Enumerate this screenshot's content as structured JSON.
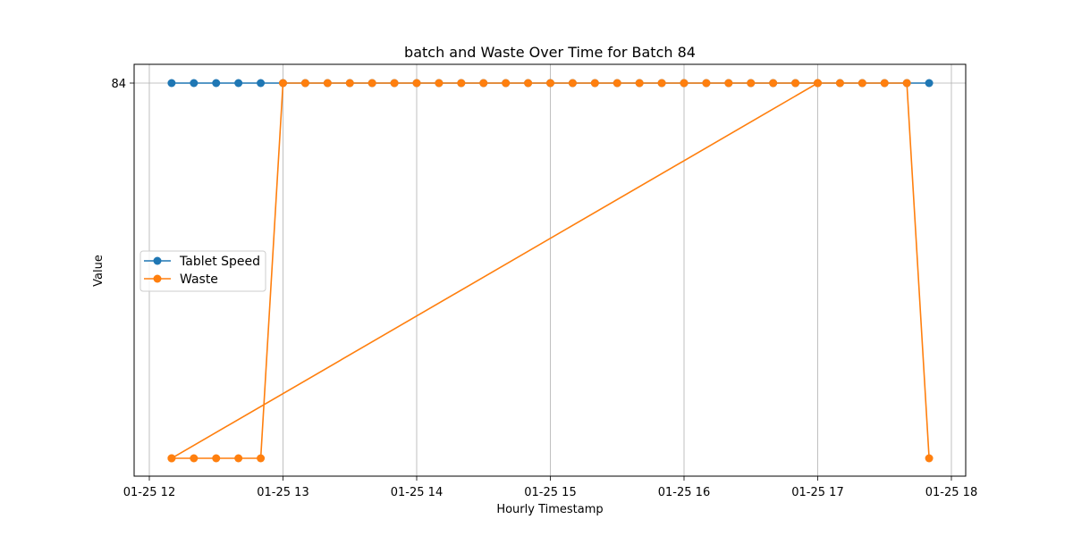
{
  "chart_data": {
    "type": "line",
    "title": "batch and Waste Over Time for Batch 84",
    "xlabel": "Hourly Timestamp",
    "ylabel": "Value",
    "x_ticks": [
      "01-25 12",
      "01-25 13",
      "01-25 14",
      "01-25 15",
      "01-25 16",
      "01-25 17",
      "01-25 18"
    ],
    "y_ticks": [
      "84"
    ],
    "xlim": [
      "01-25 11:50",
      "01-25 18:10"
    ],
    "grid": true,
    "legend_position": "center-left",
    "series": [
      {
        "name": "Tablet Speed",
        "color": "#1f77b4",
        "x": [
          "12:10",
          "12:20",
          "12:30",
          "12:40",
          "12:50",
          "13:00",
          "13:10",
          "13:20",
          "13:30",
          "13:40",
          "13:50",
          "14:00",
          "14:10",
          "14:20",
          "14:30",
          "14:40",
          "14:50",
          "15:00",
          "15:10",
          "15:20",
          "15:30",
          "15:40",
          "15:50",
          "16:00",
          "16:10",
          "16:20",
          "16:30",
          "16:40",
          "16:50",
          "17:00",
          "17:10",
          "17:20",
          "17:30",
          "17:40",
          "17:50"
        ],
        "y": [
          "high",
          "high",
          "high",
          "high",
          "high",
          "high",
          "high",
          "high",
          "high",
          "high",
          "high",
          "high",
          "high",
          "high",
          "high",
          "high",
          "high",
          "high",
          "high",
          "high",
          "high",
          "high",
          "high",
          "high",
          "high",
          "high",
          "high",
          "high",
          "high",
          "high",
          "high",
          "high",
          "high",
          "high",
          "high"
        ]
      },
      {
        "name": "Waste",
        "color": "#ff7f0e",
        "x": [
          "12:10",
          "12:20",
          "12:30",
          "12:40",
          "12:50",
          "13:00",
          "13:10",
          "13:20",
          "13:30",
          "13:40",
          "13:50",
          "14:00",
          "14:10",
          "14:20",
          "14:30",
          "14:40",
          "14:50",
          "15:00",
          "15:10",
          "15:20",
          "15:30",
          "15:40",
          "15:50",
          "16:00",
          "16:10",
          "16:20",
          "16:30",
          "16:40",
          "16:50",
          "17:00",
          "12:10",
          "17:00",
          "17:10",
          "17:20",
          "17:30",
          "17:40",
          "17:50"
        ],
        "y": [
          "low",
          "low",
          "low",
          "low",
          "low",
          "high",
          "high",
          "high",
          "high",
          "high",
          "high",
          "high",
          "high",
          "high",
          "high",
          "high",
          "high",
          "high",
          "high",
          "high",
          "high",
          "high",
          "high",
          "high",
          "high",
          "high",
          "high",
          "high",
          "high",
          "high",
          "low",
          "high",
          "high",
          "high",
          "high",
          "high",
          "low"
        ]
      }
    ]
  }
}
